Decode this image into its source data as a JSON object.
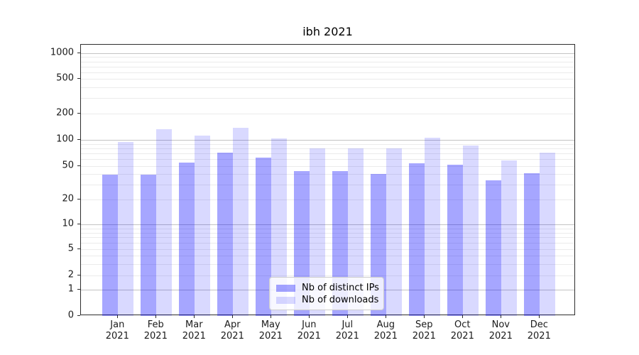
{
  "title": "ibh 2021",
  "chart_data": {
    "type": "bar",
    "title": "ibh 2021",
    "categories": [
      "Jan 2021",
      "Feb 2021",
      "Mar 2021",
      "Apr 2021",
      "May 2021",
      "Jun 2021",
      "Jul 2021",
      "Aug 2021",
      "Sep 2021",
      "Oct 2021",
      "Nov 2021",
      "Dec 2021"
    ],
    "month_labels": [
      "Jan",
      "Feb",
      "Mar",
      "Apr",
      "May",
      "Jun",
      "Jul",
      "Aug",
      "Sep",
      "Oct",
      "Nov",
      "Dec"
    ],
    "year_label": "2021",
    "series": [
      {
        "name": "Nb of distinct IPs",
        "color": "rgba(0,0,255,0.35)",
        "values": [
          39,
          39,
          55,
          72,
          62,
          43,
          43,
          40,
          54,
          52,
          34,
          41
        ]
      },
      {
        "name": "Nb of downloads",
        "color": "rgba(0,0,255,0.15)",
        "values": [
          95,
          133,
          112,
          138,
          105,
          80,
          80,
          80,
          107,
          86,
          58,
          71
        ]
      }
    ],
    "yscale": "symlog",
    "ylim": [
      0,
      1000
    ],
    "y_ticks": [
      0,
      1,
      2,
      5,
      10,
      20,
      50,
      100,
      200,
      500,
      1000
    ],
    "grid": true,
    "legend_position": "lower center",
    "colors": {
      "bar_distinct_ips": "rgba(0,0,255,0.35)",
      "bar_downloads": "rgba(0,0,255,0.15)",
      "grid_major": "#c3c3c3",
      "grid_minor": "#ebebeb",
      "axis": "#2e2e2e",
      "text": "#1a1a1a"
    }
  }
}
